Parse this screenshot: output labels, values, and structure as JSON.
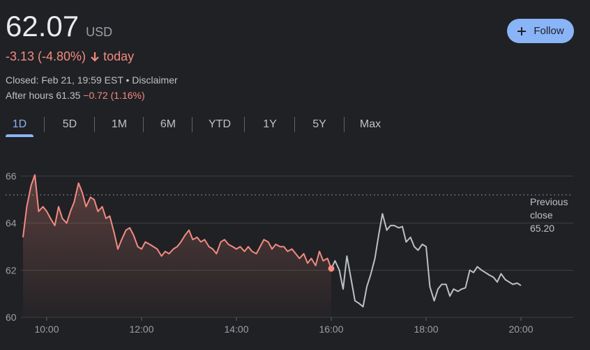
{
  "quote": {
    "price": "62.07",
    "currency": "USD",
    "change": "-3.13 (-4.80%)",
    "change_period": "today",
    "closed_text": "Closed: Feb 21, 19:59 EST • Disclaimer",
    "after_hours_label": "After hours 61.35",
    "after_hours_change": "−0.72 (1.16%)",
    "follow_label": "Follow"
  },
  "tabs": [
    "1D",
    "5D",
    "1M",
    "6M",
    "YTD",
    "1Y",
    "5Y",
    "Max"
  ],
  "active_tab": "1D",
  "colors": {
    "regular_line": "#f28b82",
    "after_hours_line": "#bdc1c6",
    "accent": "#8ab4f8",
    "grid": "#3c4043"
  },
  "chart_data": {
    "type": "line",
    "ylim": [
      60,
      66.5
    ],
    "y_ticks": [
      "60",
      "62",
      "64",
      "66"
    ],
    "x_ticks": [
      "10:00",
      "12:00",
      "14:00",
      "16:00",
      "18:00",
      "20:00"
    ],
    "x_tick_hours": [
      10,
      12,
      14,
      16,
      18,
      20
    ],
    "xlim_hours": [
      9.5,
      20.15
    ],
    "previous_close": 65.2,
    "previous_close_label": [
      "Previous",
      "close",
      "65.20"
    ],
    "series": [
      {
        "key": "regular",
        "points": [
          [
            9.5,
            63.4
          ],
          [
            9.58,
            64.7
          ],
          [
            9.67,
            65.6
          ],
          [
            9.75,
            66.05
          ],
          [
            9.83,
            64.5
          ],
          [
            9.92,
            64.7
          ],
          [
            10.0,
            64.5
          ],
          [
            10.08,
            64.2
          ],
          [
            10.17,
            63.9
          ],
          [
            10.25,
            64.7
          ],
          [
            10.33,
            64.2
          ],
          [
            10.42,
            64.0
          ],
          [
            10.5,
            64.5
          ],
          [
            10.58,
            64.9
          ],
          [
            10.67,
            65.7
          ],
          [
            10.75,
            65.3
          ],
          [
            10.83,
            64.7
          ],
          [
            10.92,
            65.1
          ],
          [
            11.0,
            65.0
          ],
          [
            11.08,
            64.5
          ],
          [
            11.17,
            64.7
          ],
          [
            11.25,
            64.2
          ],
          [
            11.33,
            64.3
          ],
          [
            11.42,
            63.6
          ],
          [
            11.5,
            62.9
          ],
          [
            11.58,
            63.3
          ],
          [
            11.67,
            63.7
          ],
          [
            11.75,
            63.8
          ],
          [
            11.83,
            63.5
          ],
          [
            11.92,
            63.0
          ],
          [
            12.0,
            62.9
          ],
          [
            12.08,
            63.2
          ],
          [
            12.17,
            63.1
          ],
          [
            12.25,
            63.0
          ],
          [
            12.33,
            62.9
          ],
          [
            12.42,
            62.6
          ],
          [
            12.5,
            62.8
          ],
          [
            12.58,
            62.7
          ],
          [
            12.67,
            62.9
          ],
          [
            12.75,
            63.0
          ],
          [
            12.83,
            63.2
          ],
          [
            12.92,
            63.5
          ],
          [
            13.0,
            63.7
          ],
          [
            13.08,
            63.3
          ],
          [
            13.17,
            63.4
          ],
          [
            13.25,
            63.2
          ],
          [
            13.33,
            63.3
          ],
          [
            13.42,
            63.0
          ],
          [
            13.5,
            62.9
          ],
          [
            13.58,
            62.7
          ],
          [
            13.67,
            63.2
          ],
          [
            13.75,
            63.3
          ],
          [
            13.83,
            63.1
          ],
          [
            13.92,
            63.0
          ],
          [
            14.0,
            62.9
          ],
          [
            14.08,
            63.0
          ],
          [
            14.17,
            62.8
          ],
          [
            14.25,
            63.0
          ],
          [
            14.33,
            62.8
          ],
          [
            14.42,
            62.7
          ],
          [
            14.5,
            63.0
          ],
          [
            14.58,
            63.3
          ],
          [
            14.67,
            63.2
          ],
          [
            14.75,
            62.9
          ],
          [
            14.83,
            63.1
          ],
          [
            14.92,
            63.0
          ],
          [
            15.0,
            63.0
          ],
          [
            15.08,
            62.8
          ],
          [
            15.17,
            62.9
          ],
          [
            15.25,
            62.7
          ],
          [
            15.33,
            62.5
          ],
          [
            15.42,
            62.7
          ],
          [
            15.5,
            62.3
          ],
          [
            15.58,
            62.5
          ],
          [
            15.67,
            62.2
          ],
          [
            15.75,
            62.8
          ],
          [
            15.83,
            62.4
          ],
          [
            15.92,
            62.5
          ],
          [
            16.0,
            62.07
          ]
        ]
      },
      {
        "key": "after_hours",
        "points": [
          [
            16.0,
            62.07
          ],
          [
            16.08,
            62.4
          ],
          [
            16.17,
            62.0
          ],
          [
            16.25,
            61.2
          ],
          [
            16.33,
            62.6
          ],
          [
            16.42,
            61.6
          ],
          [
            16.5,
            60.7
          ],
          [
            16.58,
            60.6
          ],
          [
            16.67,
            60.45
          ],
          [
            16.75,
            61.3
          ],
          [
            16.83,
            61.8
          ],
          [
            16.92,
            62.5
          ],
          [
            17.0,
            63.5
          ],
          [
            17.08,
            64.4
          ],
          [
            17.17,
            63.7
          ],
          [
            17.25,
            63.9
          ],
          [
            17.33,
            63.9
          ],
          [
            17.42,
            63.8
          ],
          [
            17.5,
            63.85
          ],
          [
            17.58,
            63.2
          ],
          [
            17.67,
            63.4
          ],
          [
            17.75,
            63.0
          ],
          [
            17.83,
            62.85
          ],
          [
            17.92,
            63.1
          ],
          [
            18.0,
            63.0
          ],
          [
            18.08,
            61.3
          ],
          [
            18.17,
            60.7
          ],
          [
            18.25,
            61.2
          ],
          [
            18.33,
            61.4
          ],
          [
            18.42,
            61.4
          ],
          [
            18.5,
            60.9
          ],
          [
            18.58,
            61.2
          ],
          [
            18.67,
            61.1
          ],
          [
            18.75,
            61.2
          ],
          [
            18.83,
            61.25
          ],
          [
            18.92,
            62.0
          ],
          [
            19.0,
            61.9
          ],
          [
            19.08,
            62.15
          ],
          [
            19.17,
            62.0
          ],
          [
            19.25,
            61.9
          ],
          [
            19.33,
            61.8
          ],
          [
            19.42,
            61.7
          ],
          [
            19.5,
            61.5
          ],
          [
            19.58,
            61.85
          ],
          [
            19.67,
            61.6
          ],
          [
            19.75,
            61.5
          ],
          [
            19.83,
            61.4
          ],
          [
            19.92,
            61.45
          ],
          [
            20.0,
            61.35
          ]
        ]
      }
    ]
  }
}
